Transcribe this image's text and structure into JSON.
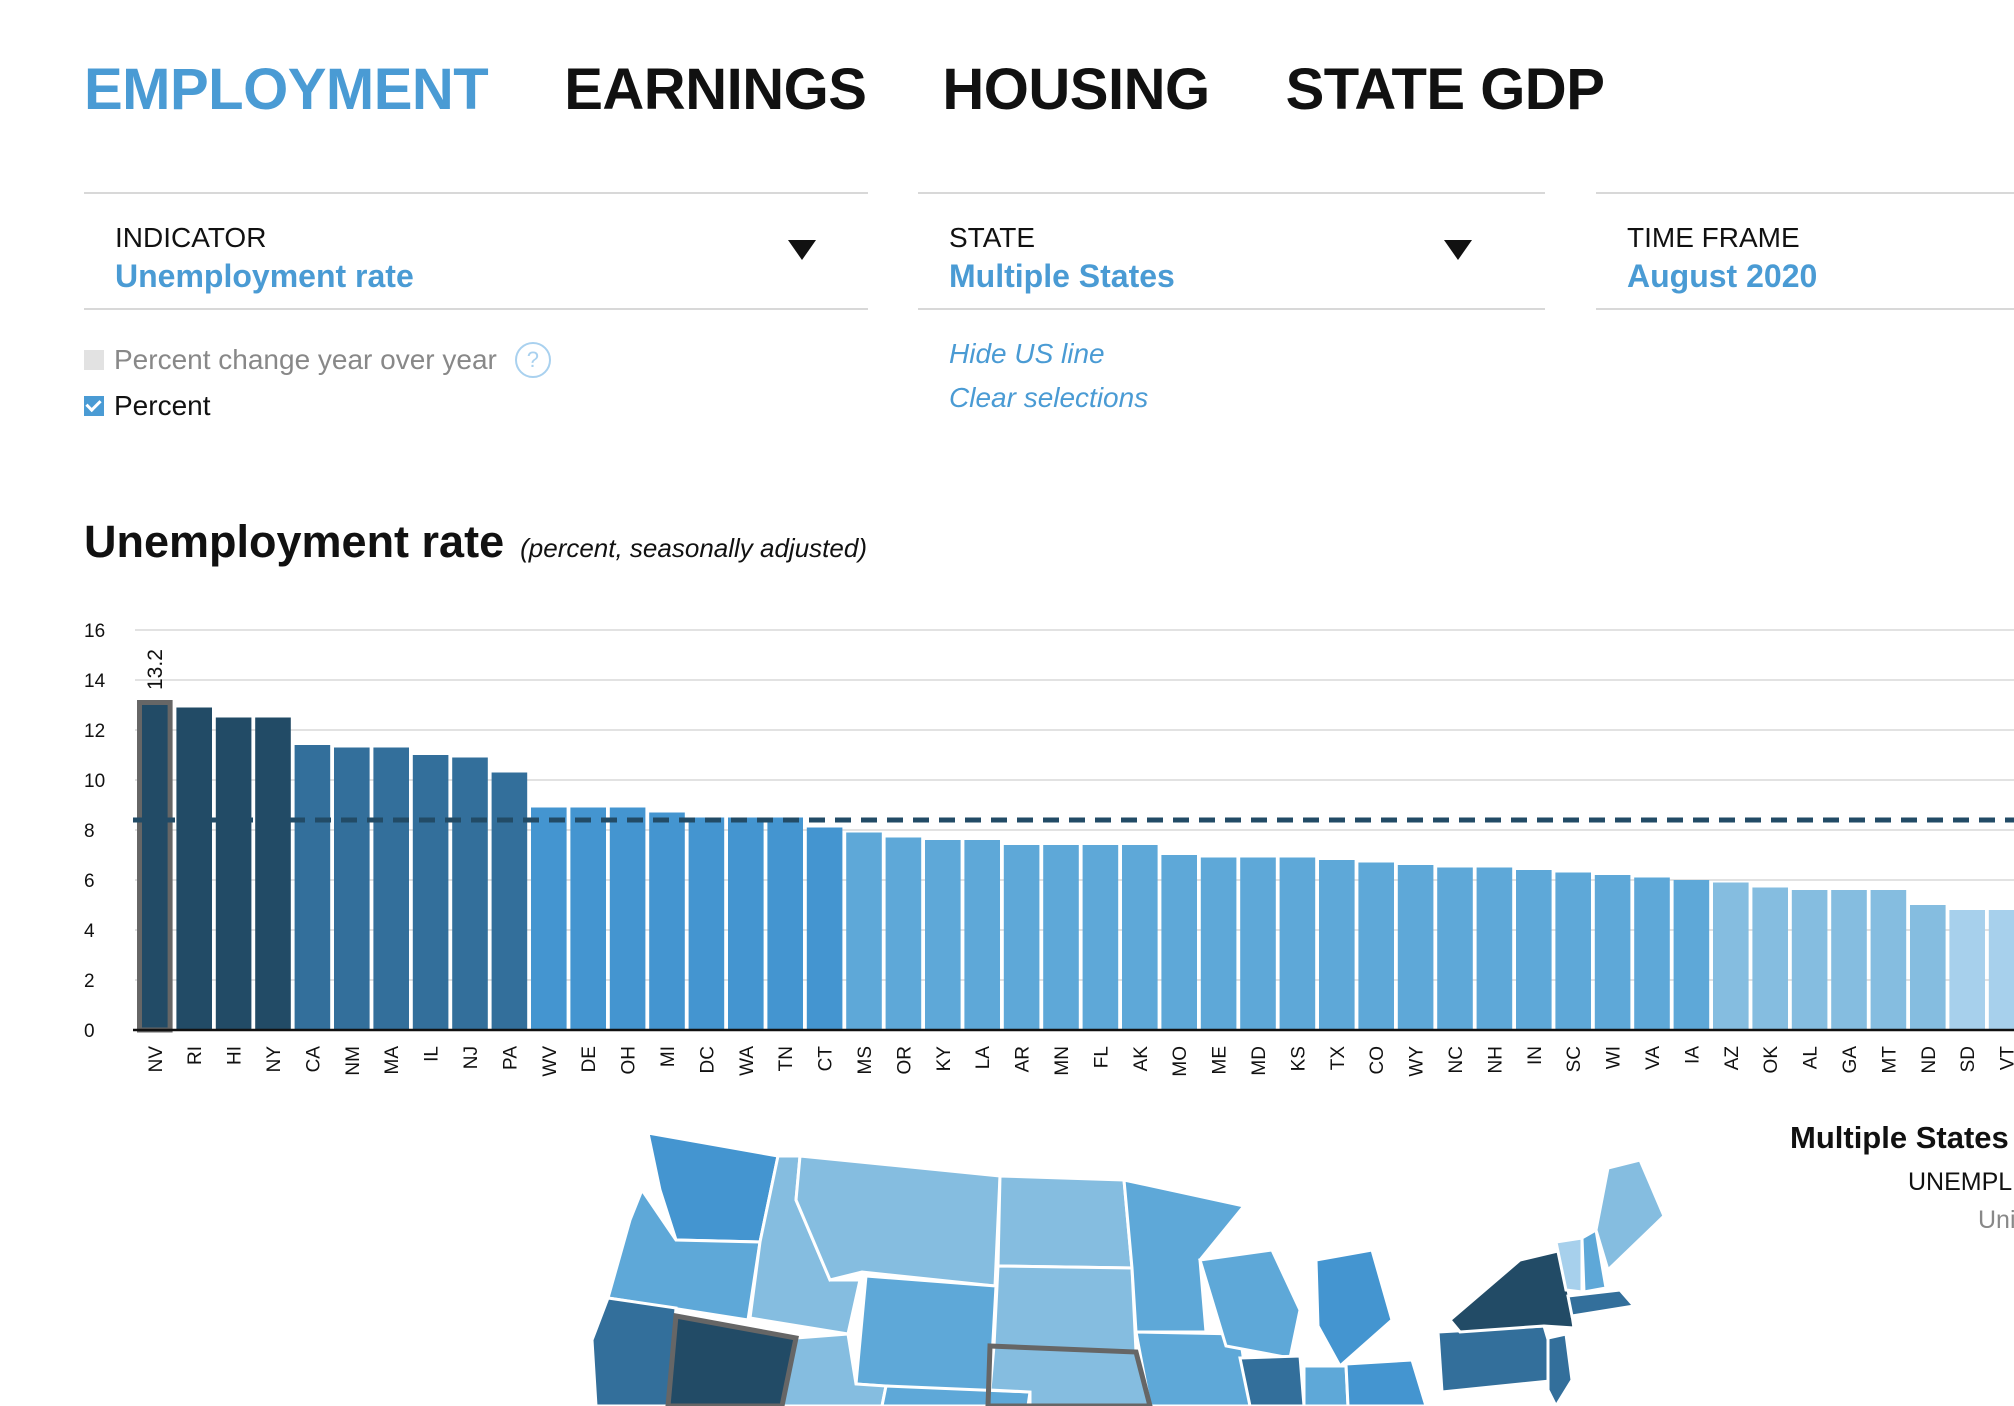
{
  "tabs": [
    "EMPLOYMENT",
    "EARNINGS",
    "HOUSING",
    "STATE GDP"
  ],
  "indicator": {
    "label": "INDICATOR",
    "value": "Unemployment rate"
  },
  "state": {
    "label": "STATE",
    "value": "Multiple States"
  },
  "timeframe": {
    "label": "TIME FRAME",
    "value": "August 2020"
  },
  "options": {
    "pct_change": "Percent change year over year",
    "help": "?",
    "percent": "Percent"
  },
  "links": {
    "hide_us": "Hide US line",
    "clear": "Clear selections"
  },
  "chart_title": "Unemployment rate",
  "chart_subtitle": "(percent, seasonally adjusted)",
  "side": {
    "title": "Multiple States",
    "indicator_label": "UNEMPL",
    "unit_label": "Uni"
  },
  "colors": {
    "accent": "#4a9bd4",
    "dark": "#224b66",
    "mid_dark": "#336f9b",
    "mid": "#4495d0",
    "light_mid": "#5ea8d8",
    "light": "#85bde0",
    "lighter": "#a7d0ec",
    "us_line": "#224b66",
    "highlight_border": "#666666"
  },
  "chart_data": {
    "type": "bar",
    "categories": [
      "NV",
      "RI",
      "HI",
      "NY",
      "CA",
      "NM",
      "MA",
      "IL",
      "NJ",
      "PA",
      "WV",
      "DE",
      "OH",
      "MI",
      "DC",
      "WA",
      "TN",
      "CT",
      "MS",
      "OR",
      "KY",
      "LA",
      "AR",
      "MN",
      "FL",
      "AK",
      "MO",
      "ME",
      "MD",
      "KS",
      "TX",
      "CO",
      "WY",
      "NC",
      "NH",
      "IN",
      "SC",
      "WI",
      "VA",
      "IA",
      "AZ",
      "OK",
      "AL",
      "GA",
      "MT",
      "ND",
      "SD",
      "VT"
    ],
    "values": [
      13.2,
      12.9,
      12.5,
      12.5,
      11.4,
      11.3,
      11.3,
      11.0,
      10.9,
      10.3,
      8.9,
      8.9,
      8.9,
      8.7,
      8.5,
      8.5,
      8.5,
      8.1,
      7.9,
      7.7,
      7.6,
      7.6,
      7.4,
      7.4,
      7.4,
      7.4,
      7.0,
      6.9,
      6.9,
      6.9,
      6.8,
      6.7,
      6.6,
      6.5,
      6.5,
      6.4,
      6.3,
      6.2,
      6.1,
      6.0,
      5.9,
      5.7,
      5.6,
      5.6,
      5.6,
      5.0,
      4.8,
      4.8
    ],
    "us_average": 8.4,
    "highlighted": "NV",
    "data_label": "13.2",
    "y_ticks": [
      0,
      2,
      4,
      6,
      8,
      10,
      12,
      14,
      16
    ],
    "ylim": [
      0,
      16
    ],
    "grid": true,
    "title": "Unemployment rate",
    "subtitle": "(percent, seasonally adjusted)"
  }
}
